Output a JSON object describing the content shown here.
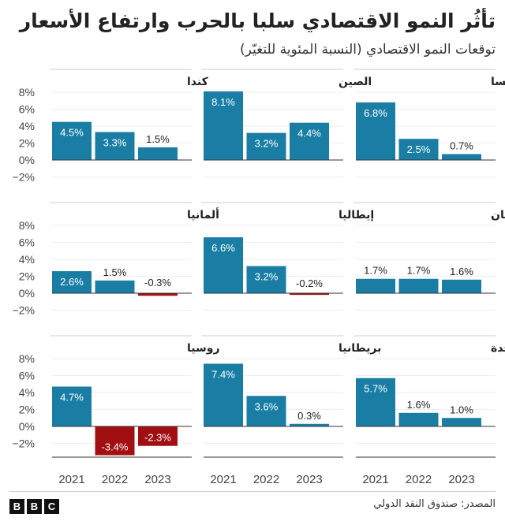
{
  "title": "تأثُر النمو الاقتصادي سلبا بالحرب وارتفاع الأسعار",
  "subtitle": "توقعات النمو الاقتصادي (النسبة المئوية للتغيّر)",
  "source": "المصدر: صندوق النقد الدولي",
  "logo": [
    "B",
    "B",
    "C"
  ],
  "colors": {
    "positive": "#1a7ea4",
    "negative": "#a20f12",
    "axis": "#333333",
    "grid": "#dddddd"
  },
  "chart_data": {
    "type": "bar",
    "categories": [
      "2021",
      "2022",
      "2023"
    ],
    "y_tick_labels": [
      "8%",
      "6%",
      "4%",
      "2%",
      "0%",
      "−2%"
    ],
    "ylim": [
      -4,
      8
    ],
    "panels": [
      {
        "name": "فرنسا",
        "values": [
          6.8,
          2.5,
          0.7
        ],
        "labels": [
          "6.8%",
          "2.5%",
          "0.7%"
        ]
      },
      {
        "name": "الصين",
        "values": [
          8.1,
          3.2,
          4.4
        ],
        "labels": [
          "8.1%",
          "3.2%",
          "4.4%"
        ]
      },
      {
        "name": "كندا",
        "values": [
          4.5,
          3.3,
          1.5
        ],
        "labels": [
          "4.5%",
          "3.3%",
          "1.5%"
        ]
      },
      {
        "name": "اليابان",
        "values": [
          1.7,
          1.7,
          1.6
        ],
        "labels": [
          "1.7%",
          "1.7%",
          "1.6%"
        ]
      },
      {
        "name": "إيطاليا",
        "values": [
          6.6,
          3.2,
          -0.2
        ],
        "labels": [
          "6.6%",
          "3.2%",
          "-0.2%"
        ]
      },
      {
        "name": "ألمانيا",
        "values": [
          2.6,
          1.5,
          -0.3
        ],
        "labels": [
          "2.6%",
          "1.5%",
          "-0.3%"
        ]
      },
      {
        "name": "الولايات المتحدة",
        "values": [
          5.7,
          1.6,
          1.0
        ],
        "labels": [
          "5.7%",
          "1.6%",
          "1.0%"
        ]
      },
      {
        "name": "بريطانيا",
        "values": [
          7.4,
          3.6,
          0.3
        ],
        "labels": [
          "7.4%",
          "3.6%",
          "0.3%"
        ]
      },
      {
        "name": "روسيا",
        "values": [
          4.7,
          -3.4,
          -2.3
        ],
        "labels": [
          "4.7%",
          "-3.4%",
          "-2.3%"
        ]
      }
    ]
  }
}
